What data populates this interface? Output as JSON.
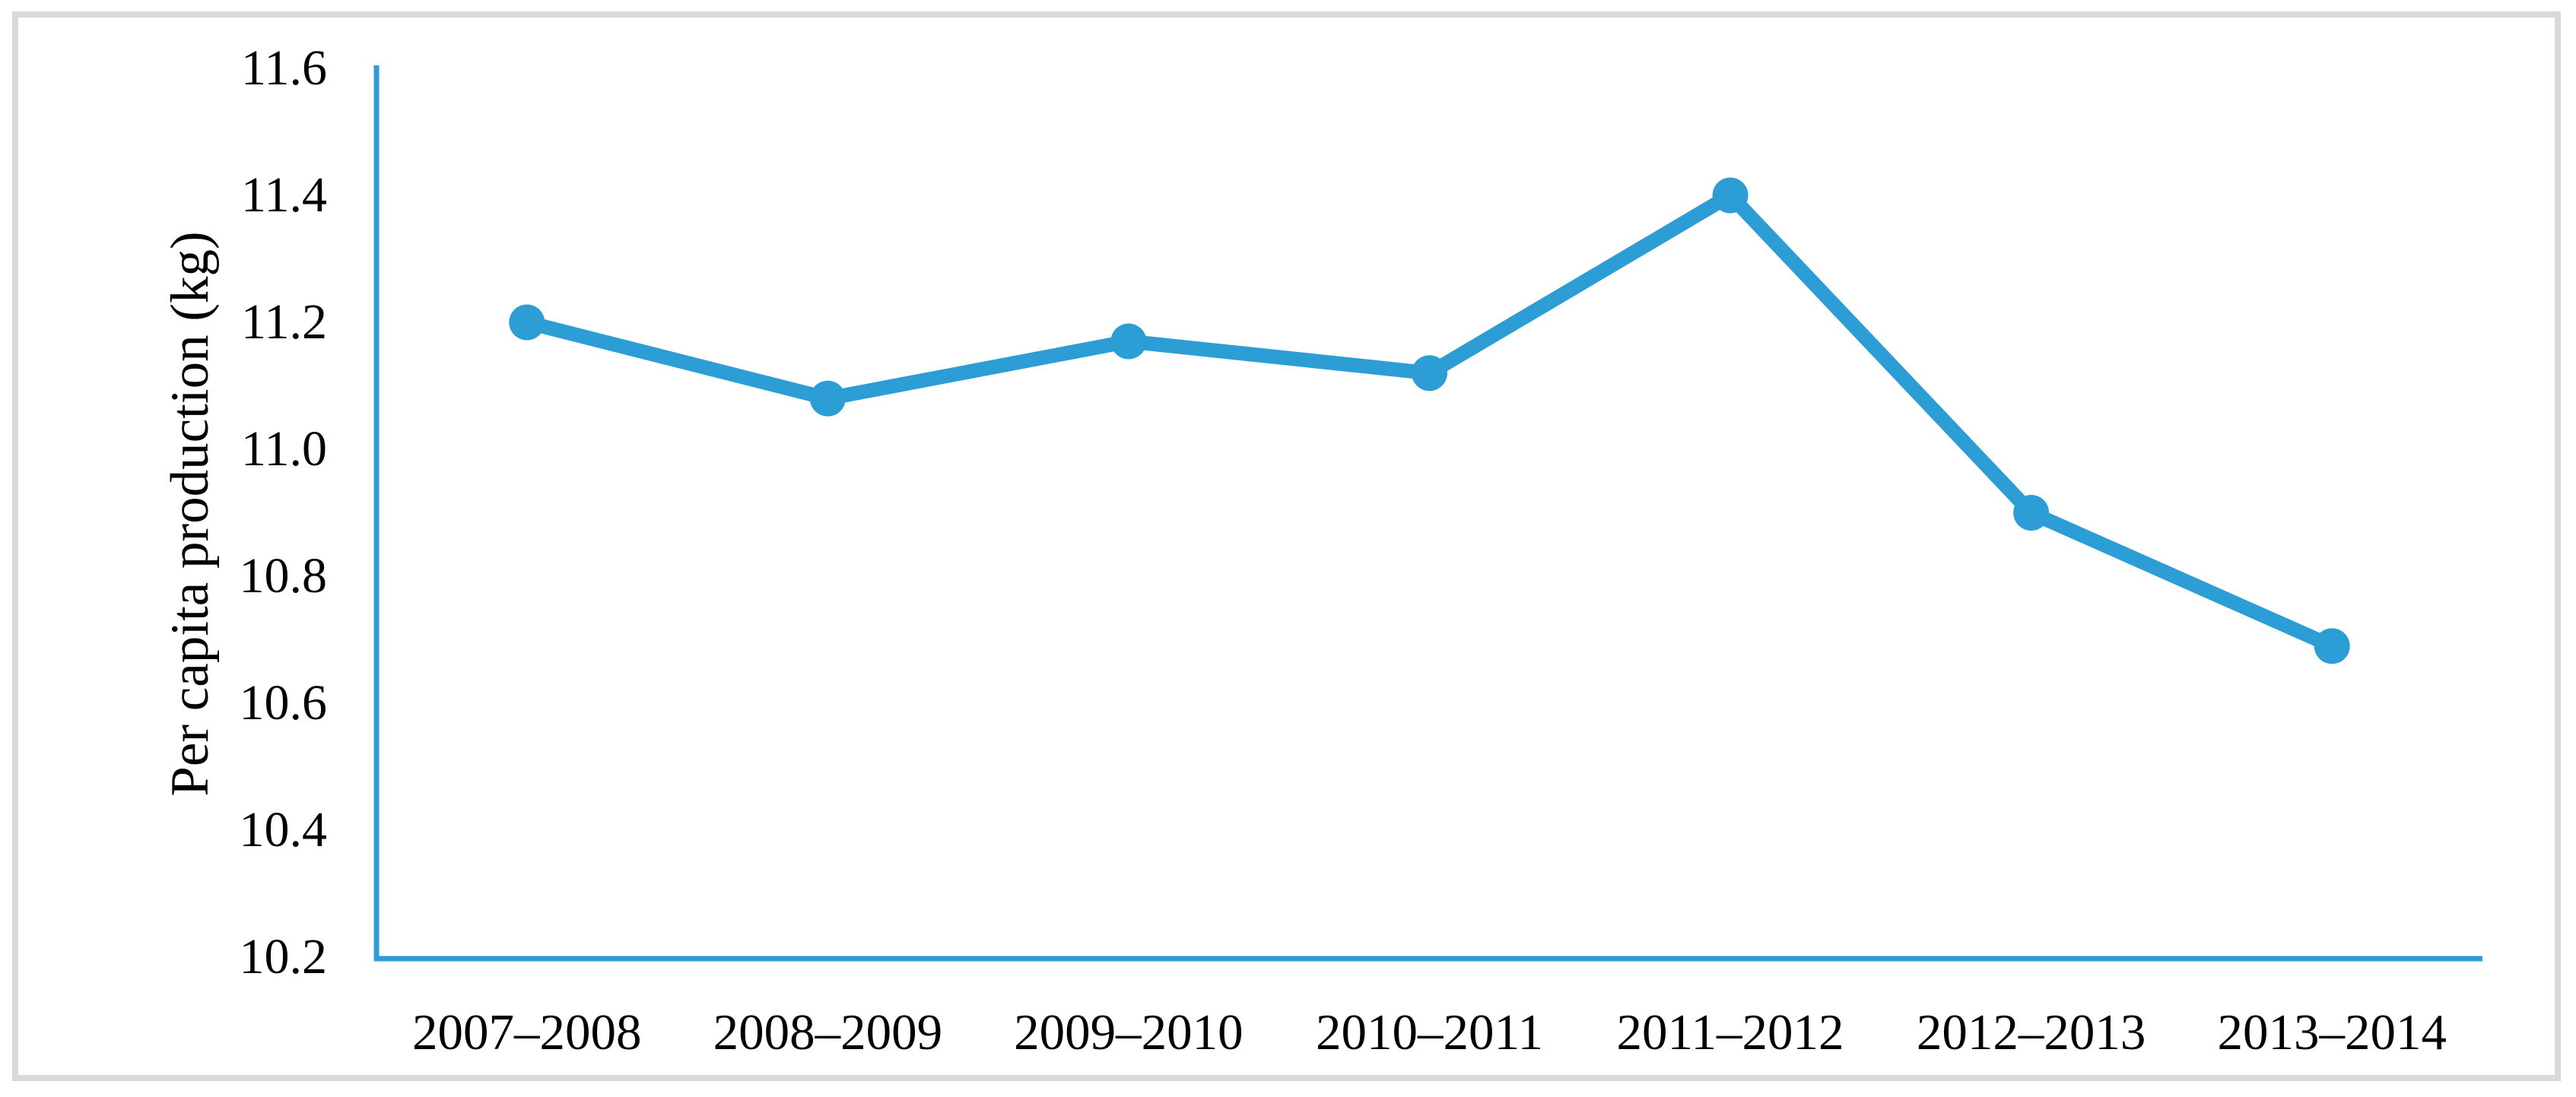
{
  "window": {
    "background": "#FFFFFF",
    "frame_border_color": "#D9D9D9"
  },
  "chart_data": {
    "type": "line",
    "title": "",
    "categories": [
      "2007–2008",
      "2008–2009",
      "2009–2010",
      "2010–2011",
      "2011–2012",
      "2012–2013",
      "2013–2014"
    ],
    "values": [
      11.2,
      11.08,
      11.17,
      11.12,
      11.4,
      10.9,
      10.69
    ],
    "series_name": "Per capita production",
    "xlabel": "",
    "ylabel": "Per capita production (kg)",
    "ylim": [
      10.2,
      11.6
    ],
    "y_tick_step": 0.2,
    "y_tick_labels": [
      "11.6",
      "11.4",
      "11.2",
      "11.0",
      "10.8",
      "10.6",
      "10.4",
      "10.2"
    ],
    "grid": false,
    "legend": false,
    "marker": "circle",
    "line_color": "#2D9DD5",
    "axis_color": "#2D9DD5",
    "text_color": "#000000"
  }
}
